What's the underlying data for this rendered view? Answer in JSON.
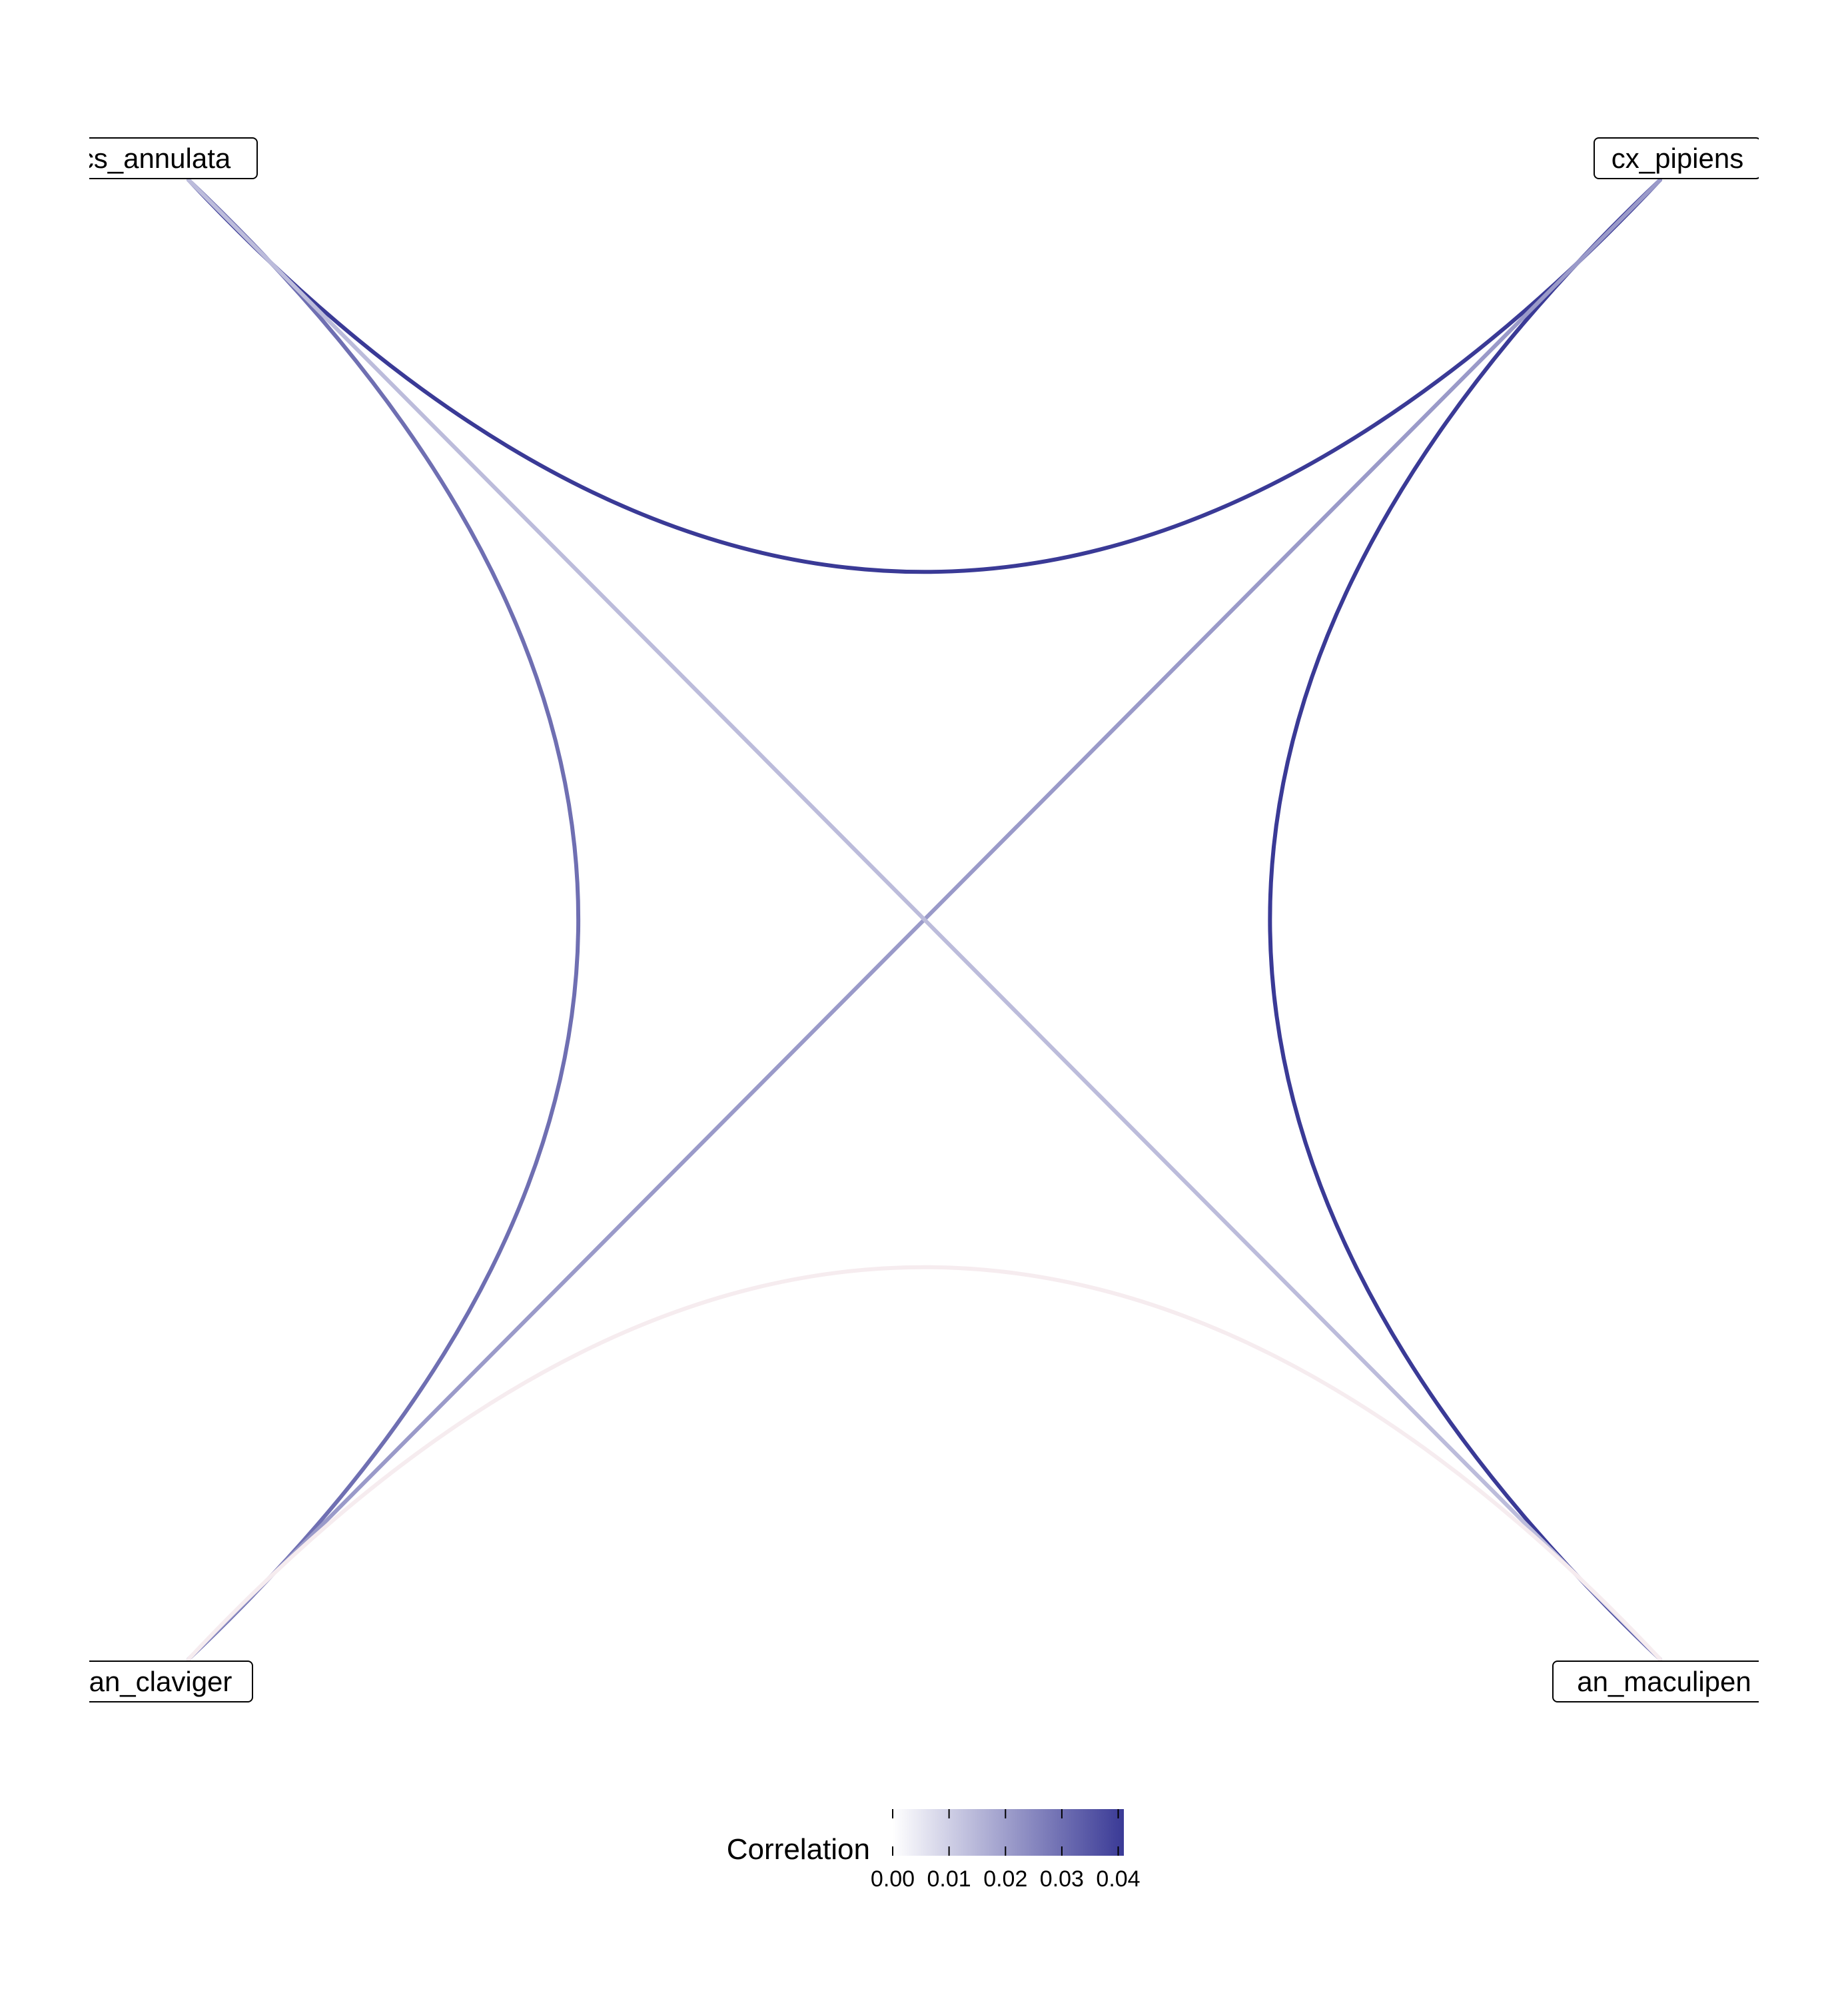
{
  "nodes": [
    {
      "id": "cs",
      "label": "cs_annulata"
    },
    {
      "id": "cx",
      "label": "cx_pipiens"
    },
    {
      "id": "cl",
      "label": "an_claviger"
    },
    {
      "id": "ma",
      "label": "an_maculipen"
    }
  ],
  "edges": [
    {
      "from": "cs",
      "to": "cx",
      "correlation": 0.041
    },
    {
      "from": "cx",
      "to": "ma",
      "correlation": 0.041
    },
    {
      "from": "cs",
      "to": "cl",
      "correlation": 0.03
    },
    {
      "from": "cl",
      "to": "cx",
      "correlation": 0.021
    },
    {
      "from": "cs",
      "to": "ma",
      "correlation": 0.014
    },
    {
      "from": "cl",
      "to": "ma",
      "correlation": 0.0005
    }
  ],
  "legend": {
    "title": "Correlation",
    "ticks": [
      "0.00",
      "0.01",
      "0.02",
      "0.03",
      "0.04"
    ],
    "tick_values": [
      0,
      0.01,
      0.02,
      0.03,
      0.04
    ],
    "range": [
      0,
      0.041
    ],
    "color_low": "#ffffff",
    "color_high": "#3a3a96",
    "color_near_zero": "#f6ecef"
  }
}
